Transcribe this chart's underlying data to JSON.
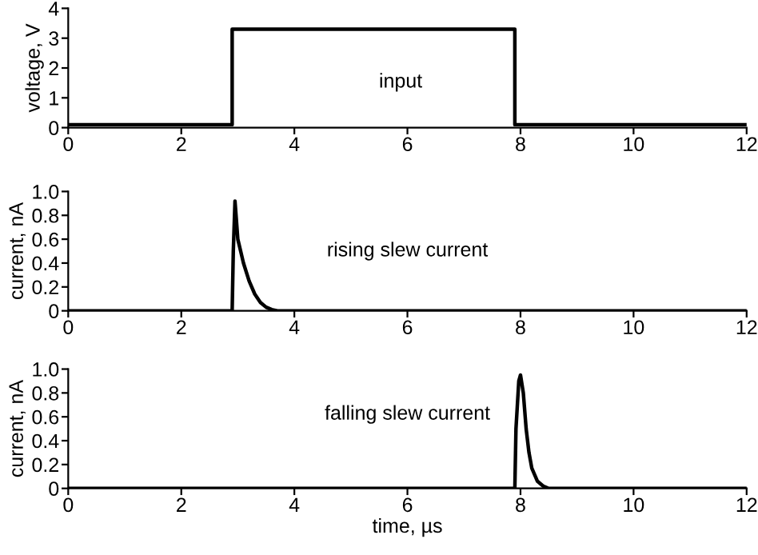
{
  "chart_data": [
    {
      "type": "line",
      "ylabel": "voltage, V",
      "xlim": [
        0,
        12
      ],
      "ylim": [
        0,
        4
      ],
      "xticks": [
        0,
        2,
        4,
        6,
        8,
        10,
        12
      ],
      "yticks": [
        0,
        1,
        2,
        3,
        4
      ],
      "grid": false,
      "legend": false,
      "annotations": [
        "input"
      ],
      "series": [
        {
          "color": "#000000",
          "x": [
            0,
            2.9,
            2.9,
            7.9,
            7.9,
            12
          ],
          "values": [
            0.1,
            0.1,
            3.3,
            3.3,
            0.1,
            0.1
          ]
        }
      ]
    },
    {
      "type": "line",
      "ylabel": "current, nA",
      "xlim": [
        0,
        12
      ],
      "ylim": [
        0,
        1
      ],
      "xticks": [
        0,
        2,
        4,
        6,
        8,
        10,
        12
      ],
      "yticks": [
        0,
        0.2,
        0.4,
        0.6,
        0.8,
        {
          "value": 1,
          "label": "1.0"
        }
      ],
      "grid": false,
      "legend": false,
      "annotations": [
        "rising slew current"
      ],
      "series": [
        {
          "color": "#000000",
          "x": [
            0,
            2.9,
            2.92,
            2.95,
            3.0,
            3.05,
            3.1,
            3.2,
            3.3,
            3.4,
            3.5,
            3.6,
            3.7,
            12
          ],
          "values": [
            0,
            0,
            0.5,
            0.92,
            0.6,
            0.5,
            0.4,
            0.25,
            0.14,
            0.07,
            0.03,
            0.01,
            0,
            0
          ]
        }
      ]
    },
    {
      "type": "line",
      "xlabel": "time, µs",
      "ylabel": "current, nA",
      "xlim": [
        0,
        12
      ],
      "ylim": [
        0,
        1
      ],
      "xticks": [
        0,
        2,
        4,
        6,
        8,
        10,
        12
      ],
      "yticks": [
        0,
        0.2,
        0.4,
        0.6,
        0.8,
        {
          "value": 1,
          "label": "1.0"
        }
      ],
      "grid": false,
      "legend": false,
      "annotations": [
        "falling slew current"
      ],
      "series": [
        {
          "color": "#000000",
          "x": [
            0,
            7.9,
            7.92,
            7.97,
            8.0,
            8.05,
            8.1,
            8.15,
            8.2,
            8.3,
            8.4,
            8.5,
            12
          ],
          "values": [
            0,
            0,
            0.5,
            0.9,
            0.95,
            0.8,
            0.5,
            0.3,
            0.17,
            0.06,
            0.02,
            0,
            0
          ]
        }
      ]
    }
  ]
}
